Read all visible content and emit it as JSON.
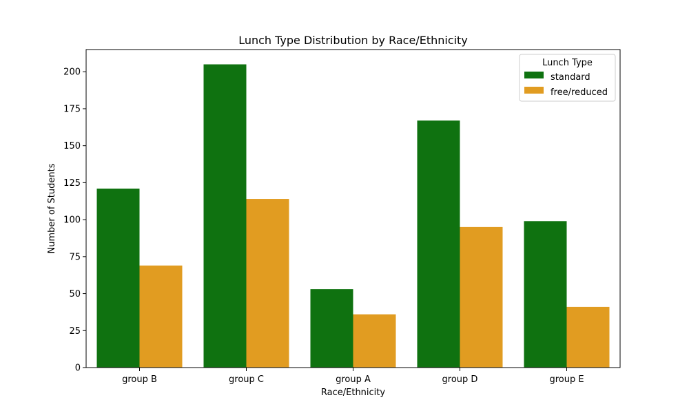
{
  "chart_data": {
    "type": "bar",
    "title": "Lunch Type Distribution by Race/Ethnicity",
    "xlabel": "Race/Ethnicity",
    "ylabel": "Number of Students",
    "categories": [
      "group B",
      "group C",
      "group A",
      "group D",
      "group E"
    ],
    "series": [
      {
        "name": "standard",
        "color": "#0f7210",
        "values": [
          121,
          205,
          53,
          167,
          99
        ]
      },
      {
        "name": "free/reduced",
        "color": "#e19c21",
        "values": [
          69,
          114,
          36,
          95,
          41
        ]
      }
    ],
    "ylim": [
      0,
      215
    ],
    "yticks": [
      0,
      25,
      50,
      75,
      100,
      125,
      150,
      175,
      200
    ],
    "legend": {
      "title": "Lunch Type",
      "placement": "top-right"
    },
    "grid": false
  }
}
